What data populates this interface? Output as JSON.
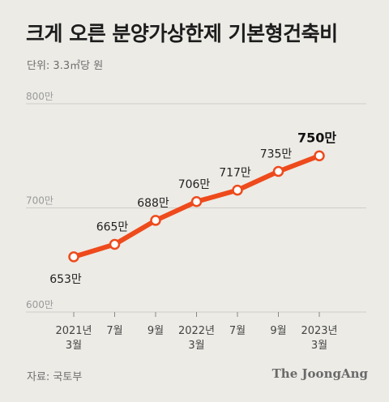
{
  "title": "크게 오른 분양가상한제 기본형건축비",
  "unit_note": "단위: 3.3㎡당 원",
  "source": "자료: 국토부",
  "brand": "The JoongAng",
  "colors": {
    "background": "#ecebe6",
    "line": "#ee4a1c",
    "marker_fill": "#ffffff",
    "grid": "#cfcdc6"
  },
  "chart_data": {
    "type": "line",
    "title": "크게 오른 분양가상한제 기본형건축비",
    "xlabel": "",
    "ylabel": "",
    "ylim": [
      600,
      800
    ],
    "yticks": [
      {
        "value": 600,
        "label": "600만"
      },
      {
        "value": 700,
        "label": "700만"
      },
      {
        "value": 800,
        "label": "800만"
      }
    ],
    "categories": [
      [
        "2021년",
        "3월"
      ],
      [
        "7월"
      ],
      [
        "9월"
      ],
      [
        "2022년",
        "3월"
      ],
      [
        "7월"
      ],
      [
        "9월"
      ],
      [
        "2023년",
        "3월"
      ]
    ],
    "series": [
      {
        "values": [
          653,
          665,
          688,
          706,
          717,
          735,
          750
        ],
        "labels": [
          "653만",
          "665만",
          "688만",
          "706만",
          "717만",
          "735만",
          "750만"
        ]
      }
    ],
    "grid": true,
    "legend": "none"
  }
}
